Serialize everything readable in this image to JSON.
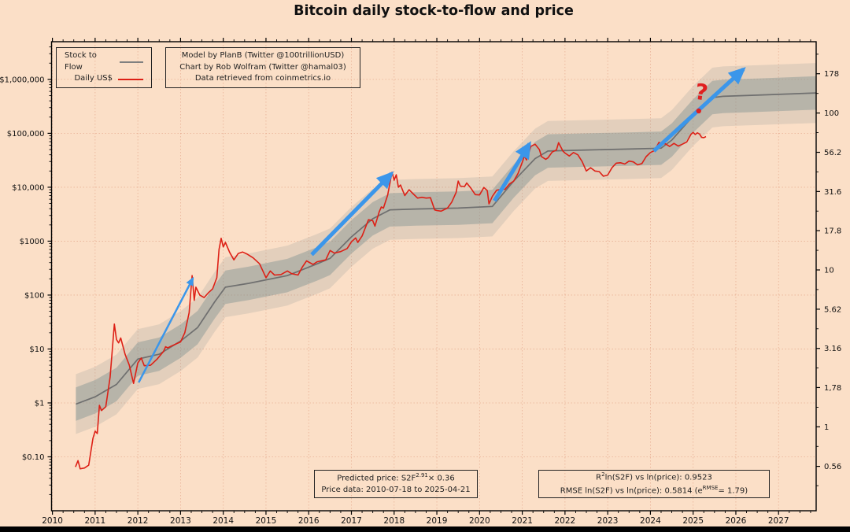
{
  "title": "Bitcoin daily stock-to-flow and price",
  "colors": {
    "background": "#fbdfc7",
    "frame": "#000000",
    "grid": "#d98c6e",
    "model_line": "#6f6f6f",
    "price_line": "#dd2016",
    "band_inner": "rgba(122,142,142,0.42)",
    "band_outer": "rgba(140,150,148,0.22)",
    "arrow": "#3b96ea",
    "annotation": "#e02020",
    "text": "#111111"
  },
  "legend": {
    "items": [
      {
        "label": "Stock to Flow",
        "color": "#808080"
      },
      {
        "label": "Daily US$",
        "color": "#dd2016"
      }
    ]
  },
  "info_box": {
    "line1": "Model by PlanB (Twitter @100trillionUSD)",
    "line2": "Chart by Rob Wolfram (Twitter @hamal03)",
    "line3": "Data retrieved from coinmetrics.io"
  },
  "formula_box": {
    "line1": {
      "prefix": "Predicted price: S2F",
      "sup": "2.91",
      "suffix": "× 0.36"
    },
    "line2": "Price data: 2010-07-18 to 2025-04-21"
  },
  "stats_box": {
    "line1": {
      "prefix": "R",
      "sup": "2",
      "suffix": "ln(S2F) vs ln(price): 0.9523"
    },
    "line2": {
      "prefix": "RMSE ln(S2F) vs ln(price): 0.5814 (e",
      "sup": "RMSE",
      "suffix": "= 1.79)"
    }
  },
  "chart_data": {
    "type": "line",
    "title": "Bitcoin daily stock-to-flow and price",
    "xlabel": "",
    "ylabel": "",
    "x_axis": {
      "range": [
        2009.98,
        2027.88
      ],
      "ticks": [
        2010,
        2011,
        2012,
        2013,
        2014,
        2015,
        2016,
        2017,
        2018,
        2019,
        2020,
        2021,
        2022,
        2023,
        2024,
        2025,
        2026,
        2027
      ]
    },
    "y_left": {
      "scale": "log",
      "range": [
        0.01,
        5000000
      ],
      "ticks": [
        {
          "label": "$1,000,000",
          "value": 1000000
        },
        {
          "label": "$100,000",
          "value": 100000
        },
        {
          "label": "$10,000",
          "value": 10000
        },
        {
          "label": "$1000",
          "value": 1000
        },
        {
          "label": "$100",
          "value": 100
        },
        {
          "label": "$10",
          "value": 10
        },
        {
          "label": "$1",
          "value": 1
        },
        {
          "label": "$0.10",
          "value": 0.1
        }
      ]
    },
    "y_right": {
      "scale": "log",
      "note": "stock-to-flow value, mapped to price axis via price = 0.36 * S2F^2.91",
      "ticks": [
        {
          "label": "178",
          "value": 178
        },
        {
          "label": "100",
          "value": 100
        },
        {
          "label": "56.2",
          "value": 56.2
        },
        {
          "label": "31.6",
          "value": 31.6
        },
        {
          "label": "17.8",
          "value": 17.8
        },
        {
          "label": "10",
          "value": 10
        },
        {
          "label": "5.62",
          "value": 5.62
        },
        {
          "label": "3.16",
          "value": 3.16
        },
        {
          "label": "1,78",
          "value": 1.78
        },
        {
          "label": "1",
          "value": 1
        },
        {
          "label": "0.56",
          "value": 0.56
        }
      ]
    },
    "bands": {
      "inner_halfwidth_decades": 0.31,
      "outer_halfwidth_decades": 0.555
    },
    "series": [
      {
        "name": "Stock to Flow",
        "role": "model",
        "color": "#6f6f6f",
        "width": 1.7,
        "points": [
          [
            2010.55,
            0.95
          ],
          [
            2011.0,
            1.3
          ],
          [
            2011.5,
            2.2
          ],
          [
            2012.0,
            6.5
          ],
          [
            2012.5,
            8
          ],
          [
            2013.0,
            14
          ],
          [
            2013.4,
            25
          ],
          [
            2013.8,
            75
          ],
          [
            2014.05,
            140
          ],
          [
            2014.6,
            165
          ],
          [
            2015.5,
            230
          ],
          [
            2016.2,
            380
          ],
          [
            2016.5,
            480
          ],
          [
            2017.0,
            1200
          ],
          [
            2017.5,
            2600
          ],
          [
            2017.9,
            3800
          ],
          [
            2018.5,
            3950
          ],
          [
            2019.5,
            4100
          ],
          [
            2020.3,
            4400
          ],
          [
            2020.8,
            13000
          ],
          [
            2021.3,
            34000
          ],
          [
            2021.6,
            47000
          ],
          [
            2022.5,
            49000
          ],
          [
            2023.5,
            51000
          ],
          [
            2024.25,
            53000
          ],
          [
            2024.5,
            75000
          ],
          [
            2025.0,
            210000
          ],
          [
            2025.45,
            460000
          ],
          [
            2025.7,
            485000
          ],
          [
            2026.5,
            510000
          ],
          [
            2027.88,
            560000
          ]
        ]
      },
      {
        "name": "Daily US$",
        "role": "price",
        "color": "#dd2016",
        "width": 1.6,
        "points": [
          [
            2010.54,
            0.065
          ],
          [
            2010.6,
            0.085
          ],
          [
            2010.65,
            0.06
          ],
          [
            2010.75,
            0.062
          ],
          [
            2010.85,
            0.07
          ],
          [
            2010.95,
            0.22
          ],
          [
            2011.0,
            0.3
          ],
          [
            2011.05,
            0.27
          ],
          [
            2011.1,
            0.9
          ],
          [
            2011.15,
            0.72
          ],
          [
            2011.25,
            0.85
          ],
          [
            2011.35,
            3.0
          ],
          [
            2011.45,
            29
          ],
          [
            2011.5,
            15
          ],
          [
            2011.55,
            13
          ],
          [
            2011.6,
            16
          ],
          [
            2011.7,
            8
          ],
          [
            2011.8,
            5
          ],
          [
            2011.9,
            2.3
          ],
          [
            2012.0,
            5.5
          ],
          [
            2012.08,
            6.8
          ],
          [
            2012.15,
            4.9
          ],
          [
            2012.3,
            5.0
          ],
          [
            2012.45,
            6.5
          ],
          [
            2012.6,
            9
          ],
          [
            2012.65,
            11
          ],
          [
            2012.7,
            10.5
          ],
          [
            2012.8,
            11.5
          ],
          [
            2013.0,
            13.5
          ],
          [
            2013.1,
            20
          ],
          [
            2013.2,
            47
          ],
          [
            2013.27,
            230
          ],
          [
            2013.32,
            80
          ],
          [
            2013.36,
            140
          ],
          [
            2013.45,
            100
          ],
          [
            2013.55,
            90
          ],
          [
            2013.65,
            110
          ],
          [
            2013.75,
            130
          ],
          [
            2013.85,
            210
          ],
          [
            2013.9,
            700
          ],
          [
            2013.95,
            1130
          ],
          [
            2014.0,
            780
          ],
          [
            2014.05,
            950
          ],
          [
            2014.15,
            620
          ],
          [
            2014.25,
            450
          ],
          [
            2014.35,
            590
          ],
          [
            2014.45,
            630
          ],
          [
            2014.55,
            580
          ],
          [
            2014.7,
            490
          ],
          [
            2014.85,
            380
          ],
          [
            2015.0,
            210
          ],
          [
            2015.1,
            280
          ],
          [
            2015.2,
            235
          ],
          [
            2015.35,
            240
          ],
          [
            2015.5,
            280
          ],
          [
            2015.6,
            250
          ],
          [
            2015.75,
            235
          ],
          [
            2015.85,
            330
          ],
          [
            2015.95,
            430
          ],
          [
            2016.1,
            370
          ],
          [
            2016.2,
            415
          ],
          [
            2016.4,
            450
          ],
          [
            2016.5,
            670
          ],
          [
            2016.6,
            600
          ],
          [
            2016.75,
            640
          ],
          [
            2016.9,
            730
          ],
          [
            2017.0,
            970
          ],
          [
            2017.1,
            1150
          ],
          [
            2017.15,
            950
          ],
          [
            2017.25,
            1250
          ],
          [
            2017.4,
            2500
          ],
          [
            2017.5,
            2400
          ],
          [
            2017.55,
            1900
          ],
          [
            2017.65,
            3500
          ],
          [
            2017.7,
            4300
          ],
          [
            2017.75,
            4100
          ],
          [
            2017.85,
            7200
          ],
          [
            2017.95,
            19000
          ],
          [
            2018.0,
            13500
          ],
          [
            2018.05,
            17000
          ],
          [
            2018.1,
            10000
          ],
          [
            2018.15,
            11000
          ],
          [
            2018.25,
            7000
          ],
          [
            2018.35,
            9000
          ],
          [
            2018.45,
            7500
          ],
          [
            2018.55,
            6300
          ],
          [
            2018.65,
            6500
          ],
          [
            2018.75,
            6300
          ],
          [
            2018.85,
            6400
          ],
          [
            2018.95,
            3800
          ],
          [
            2019.0,
            3700
          ],
          [
            2019.1,
            3600
          ],
          [
            2019.25,
            4100
          ],
          [
            2019.35,
            5300
          ],
          [
            2019.45,
            8000
          ],
          [
            2019.5,
            13000
          ],
          [
            2019.55,
            10500
          ],
          [
            2019.65,
            10300
          ],
          [
            2019.7,
            12000
          ],
          [
            2019.8,
            9500
          ],
          [
            2019.9,
            7300
          ],
          [
            2020.0,
            7200
          ],
          [
            2020.1,
            9900
          ],
          [
            2020.18,
            8700
          ],
          [
            2020.22,
            4900
          ],
          [
            2020.3,
            6800
          ],
          [
            2020.4,
            8800
          ],
          [
            2020.5,
            9100
          ],
          [
            2020.6,
            9200
          ],
          [
            2020.7,
            11500
          ],
          [
            2020.8,
            13000
          ],
          [
            2020.9,
            18000
          ],
          [
            2021.0,
            29000
          ],
          [
            2021.05,
            38000
          ],
          [
            2021.1,
            32000
          ],
          [
            2021.2,
            57000
          ],
          [
            2021.3,
            63000
          ],
          [
            2021.4,
            50000
          ],
          [
            2021.45,
            37000
          ],
          [
            2021.55,
            33000
          ],
          [
            2021.6,
            35000
          ],
          [
            2021.7,
            45000
          ],
          [
            2021.8,
            49000
          ],
          [
            2021.85,
            67000
          ],
          [
            2021.95,
            47000
          ],
          [
            2022.0,
            43000
          ],
          [
            2022.1,
            38000
          ],
          [
            2022.2,
            44000
          ],
          [
            2022.3,
            40000
          ],
          [
            2022.4,
            30000
          ],
          [
            2022.5,
            20000
          ],
          [
            2022.6,
            23000
          ],
          [
            2022.7,
            20000
          ],
          [
            2022.8,
            19500
          ],
          [
            2022.9,
            16000
          ],
          [
            2023.0,
            16800
          ],
          [
            2023.1,
            23000
          ],
          [
            2023.2,
            28000
          ],
          [
            2023.3,
            28500
          ],
          [
            2023.4,
            27000
          ],
          [
            2023.5,
            30500
          ],
          [
            2023.6,
            29500
          ],
          [
            2023.7,
            26000
          ],
          [
            2023.8,
            27500
          ],
          [
            2023.9,
            37000
          ],
          [
            2024.0,
            44000
          ],
          [
            2024.1,
            48000
          ],
          [
            2024.2,
            68000
          ],
          [
            2024.25,
            64000
          ],
          [
            2024.35,
            64000
          ],
          [
            2024.45,
            57000
          ],
          [
            2024.55,
            65000
          ],
          [
            2024.65,
            58000
          ],
          [
            2024.75,
            63000
          ],
          [
            2024.85,
            69000
          ],
          [
            2024.95,
            96000
          ],
          [
            2025.0,
            104000
          ],
          [
            2025.05,
            95000
          ],
          [
            2025.1,
            102000
          ],
          [
            2025.15,
            97000
          ],
          [
            2025.2,
            84000
          ],
          [
            2025.25,
            83000
          ],
          [
            2025.3,
            87000
          ]
        ]
      }
    ],
    "arrows": [
      {
        "from": [
          2012.02,
          2.4
        ],
        "to": [
          2013.29,
          205
        ],
        "width": 2.5
      },
      {
        "from": [
          2016.07,
          560
        ],
        "to": [
          2017.94,
          18000
        ],
        "width": 5
      },
      {
        "from": [
          2020.35,
          5600
        ],
        "to": [
          2021.17,
          64000
        ],
        "width": 5
      },
      {
        "from": [
          2024.08,
          47000
        ],
        "to": [
          2026.18,
          1550000
        ],
        "width": 5
      }
    ],
    "annotations": [
      {
        "type": "text",
        "text": "?",
        "at": [
          2025.17,
          420000
        ],
        "color": "#e02020"
      },
      {
        "type": "dot",
        "at": [
          2025.13,
          260000
        ],
        "color": "#e02020"
      }
    ]
  }
}
